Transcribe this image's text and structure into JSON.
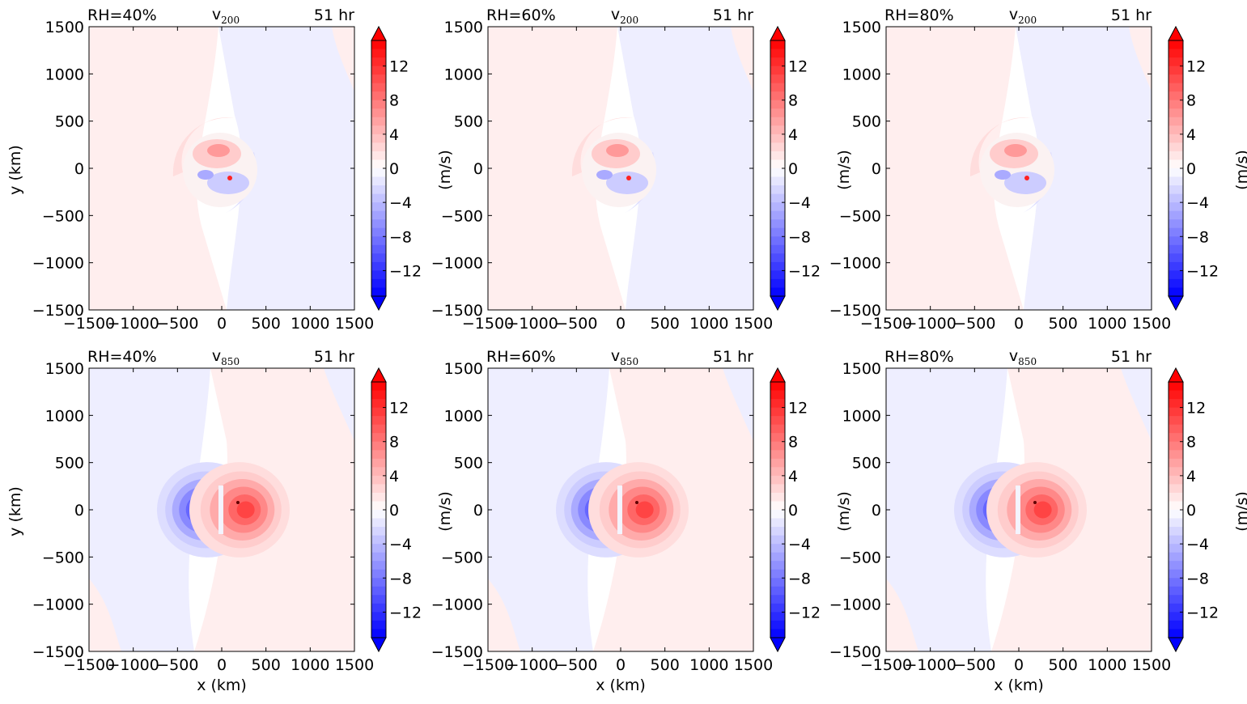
{
  "chart_data": [
    {
      "type": "heatmap",
      "title_left": "RH=40%",
      "title_center_base": "v",
      "title_center_sub": "200",
      "title_right": "51 hr",
      "xlabel": "",
      "ylabel": "y (km)",
      "xlim": [
        -1500,
        1500
      ],
      "ylim": [
        -1500,
        1500
      ],
      "xticks": [
        "−1500",
        "−1000",
        "−500",
        "0",
        "500",
        "1000",
        "1500"
      ],
      "yticks": [
        "1500",
        "1000",
        "500",
        "0",
        "−500",
        "−1000",
        "−1500"
      ],
      "level": "200",
      "vortex_center": [
        0,
        0
      ]
    },
    {
      "type": "heatmap",
      "title_left": "RH=60%",
      "title_center_base": "v",
      "title_center_sub": "200",
      "title_right": "51 hr",
      "xlabel": "",
      "ylabel": "",
      "xlim": [
        -1500,
        1500
      ],
      "ylim": [
        -1500,
        1500
      ],
      "xticks": [
        "−1500",
        "−1000",
        "−500",
        "0",
        "500",
        "1000",
        "1500"
      ],
      "yticks": [
        "1500",
        "1000",
        "500",
        "0",
        "−500",
        "−1000",
        "−1500"
      ],
      "level": "200",
      "vortex_center": [
        0,
        0
      ]
    },
    {
      "type": "heatmap",
      "title_left": "RH=80%",
      "title_center_base": "v",
      "title_center_sub": "200",
      "title_right": "51 hr",
      "xlabel": "",
      "ylabel": "",
      "xlim": [
        -1500,
        1500
      ],
      "ylim": [
        -1500,
        1500
      ],
      "xticks": [
        "−1500",
        "−1000",
        "−500",
        "0",
        "500",
        "1000",
        "1500"
      ],
      "yticks": [
        "1500",
        "1000",
        "500",
        "0",
        "−500",
        "−1000",
        "−1500"
      ],
      "level": "200",
      "vortex_center": [
        0,
        0
      ]
    },
    {
      "type": "heatmap",
      "title_left": "RH=40%",
      "title_center_base": "v",
      "title_center_sub": "850",
      "title_right": "51 hr",
      "xlabel": "x (km)",
      "ylabel": "y (km)",
      "xlim": [
        -1500,
        1500
      ],
      "ylim": [
        -1500,
        1500
      ],
      "xticks": [
        "−1500",
        "−1000",
        "−500",
        "0",
        "500",
        "1000",
        "1500"
      ],
      "yticks": [
        "1500",
        "1000",
        "500",
        "0",
        "−500",
        "−1000",
        "−1500"
      ],
      "level": "850",
      "vortex_center": [
        0,
        0
      ]
    },
    {
      "type": "heatmap",
      "title_left": "RH=60%",
      "title_center_base": "v",
      "title_center_sub": "850",
      "title_right": "51 hr",
      "xlabel": "x (km)",
      "ylabel": "",
      "xlim": [
        -1500,
        1500
      ],
      "ylim": [
        -1500,
        1500
      ],
      "xticks": [
        "−1500",
        "−1000",
        "−500",
        "0",
        "500",
        "1000",
        "1500"
      ],
      "yticks": [
        "1500",
        "1000",
        "500",
        "0",
        "−500",
        "−1000",
        "−1500"
      ],
      "level": "850",
      "vortex_center": [
        0,
        0
      ]
    },
    {
      "type": "heatmap",
      "title_left": "RH=80%",
      "title_center_base": "v",
      "title_center_sub": "850",
      "title_right": "51 hr",
      "xlabel": "x (km)",
      "ylabel": "",
      "xlim": [
        -1500,
        1500
      ],
      "ylim": [
        -1500,
        1500
      ],
      "xticks": [
        "−1500",
        "−1000",
        "−500",
        "0",
        "500",
        "1000",
        "1500"
      ],
      "yticks": [
        "1500",
        "1000",
        "500",
        "0",
        "−500",
        "−1000",
        "−1500"
      ],
      "level": "850",
      "vortex_center": [
        0,
        0
      ]
    }
  ],
  "colorbar": {
    "unit": "(m/s)",
    "range": [
      -15,
      15
    ],
    "ticks": [
      12,
      8,
      4,
      0,
      -4,
      -8,
      -12
    ],
    "tick_labels": [
      "12",
      "8",
      "4",
      "0",
      "−4",
      "−8",
      "−12"
    ],
    "colormap": "bwr",
    "extend": "both"
  },
  "colors": {
    "positive": "#ff0000",
    "negative": "#0000ff",
    "neutral": "#ffffff"
  }
}
